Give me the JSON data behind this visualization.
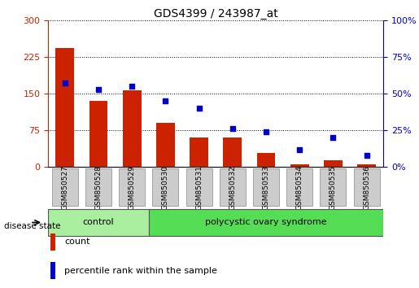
{
  "title": "GDS4399 / 243987_at",
  "samples": [
    "GSM850527",
    "GSM850528",
    "GSM850529",
    "GSM850530",
    "GSM850531",
    "GSM850532",
    "GSM850533",
    "GSM850534",
    "GSM850535",
    "GSM850536"
  ],
  "counts": [
    243,
    135,
    157,
    90,
    60,
    60,
    28,
    5,
    14,
    5
  ],
  "percentiles": [
    57,
    53,
    55,
    45,
    40,
    26,
    24,
    12,
    20,
    8
  ],
  "bar_color": "#cc2200",
  "dot_color": "#0000cc",
  "left_ylim": [
    0,
    300
  ],
  "right_ylim": [
    0,
    100
  ],
  "left_yticks": [
    0,
    75,
    150,
    225,
    300
  ],
  "right_yticks": [
    0,
    25,
    50,
    75,
    100
  ],
  "right_yticklabels": [
    "0%",
    "25%",
    "50%",
    "75%",
    "100%"
  ],
  "control_color": "#aaeea0",
  "poly_color": "#55dd55",
  "control_n": 3,
  "n_samples": 10,
  "disease_state_label": "disease state",
  "group_labels": [
    "control",
    "polycystic ovary syndrome"
  ],
  "legend_count_label": "count",
  "legend_pct_label": "percentile rank within the sample",
  "tick_bg_color": "#cccccc",
  "left_axis_color": "#cc2200",
  "right_axis_color": "#0000cc"
}
